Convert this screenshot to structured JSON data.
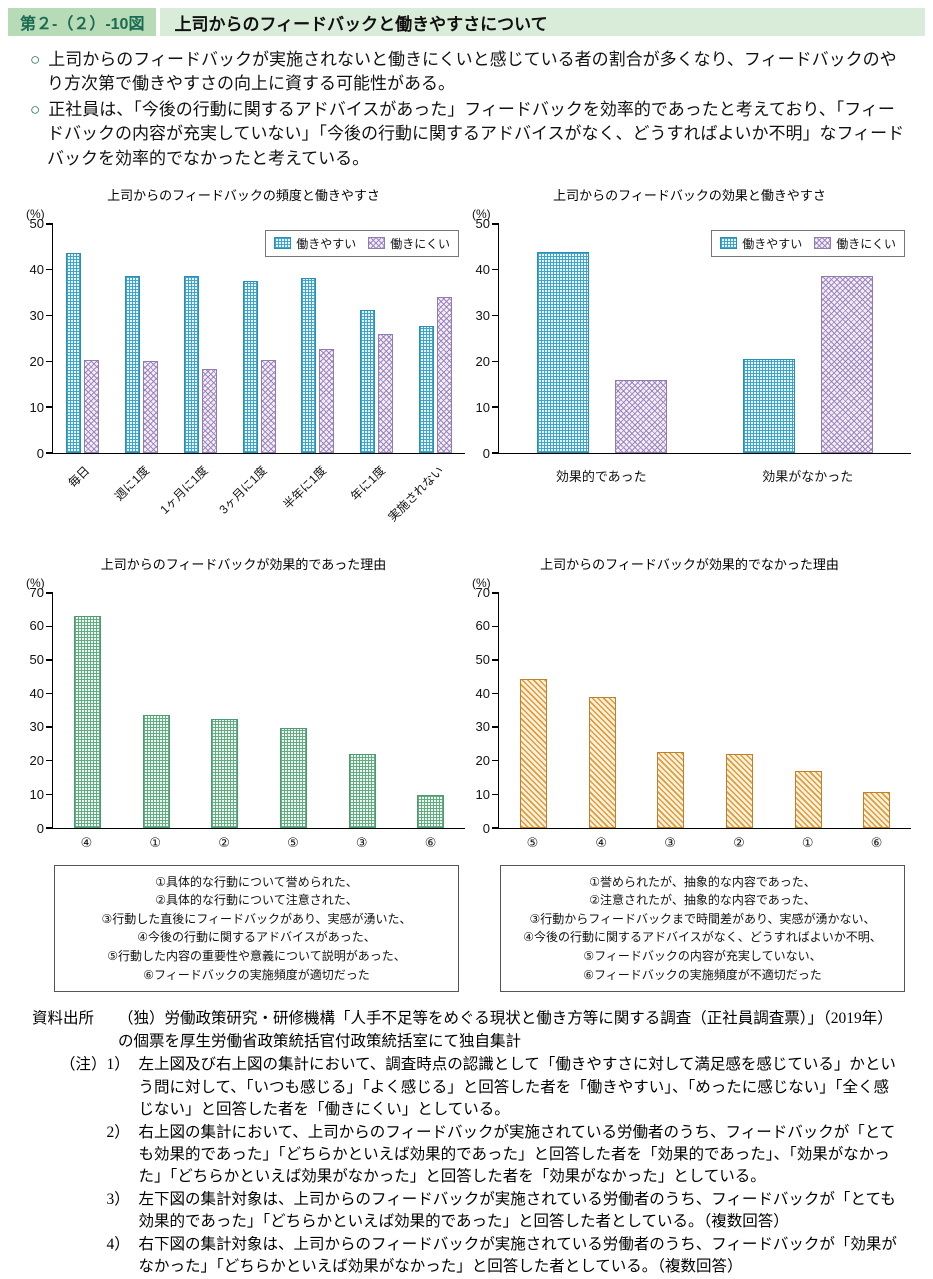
{
  "header": {
    "figure_number": "第２-（２）-10図",
    "title": "上司からのフィードバックと働きやすさについて"
  },
  "bullets": [
    {
      "marker": "○",
      "text": "上司からのフィードバックが実施されないと働きにくいと感じている者の割合が多くなり、フィードバックのやり方次第で働きやすさの向上に資する可能性がある。"
    },
    {
      "marker": "○",
      "text": "正社員は、「今後の行動に関するアドバイスがあった」フィードバックを効率的であったと考えており、「フィードバックの内容が充実していない」「今後の行動に関するアドバイスがなく、どうすればよいか不明」なフィードバックを効率的でなかったと考えている。"
    }
  ],
  "chart_data": [
    {
      "type": "bar",
      "title": "上司からのフィードバックの頻度と働きやすさ",
      "unit": "(%)",
      "ylim": [
        0,
        50
      ],
      "yticks": [
        0,
        10,
        20,
        30,
        40,
        50
      ],
      "grid": false,
      "legend": true,
      "legend_position": "top-right",
      "rotate_xlabels": true,
      "categories": [
        "毎日",
        "週に1度",
        "1ヶ月に1度",
        "3ヶ月に1度",
        "半年に1度",
        "年に1度",
        "実施されない"
      ],
      "series": [
        {
          "name": "働きやすい",
          "pattern": "blue",
          "values": [
            43.5,
            38.5,
            38.5,
            37.5,
            38.2,
            31.1,
            27.7
          ]
        },
        {
          "name": "働きにくい",
          "pattern": "purple",
          "values": [
            20.2,
            20.0,
            18.3,
            20.2,
            22.6,
            26.0,
            34.0
          ]
        }
      ]
    },
    {
      "type": "bar",
      "title": "上司からのフィードバックの効果と働きやすさ",
      "unit": "(%)",
      "ylim": [
        0,
        50
      ],
      "yticks": [
        0,
        10,
        20,
        30,
        40,
        50
      ],
      "grid": false,
      "legend": true,
      "legend_position": "top-right",
      "rotate_xlabels": false,
      "categories": [
        "効果的であった",
        "効果がなかった"
      ],
      "series": [
        {
          "name": "働きやすい",
          "pattern": "blue",
          "values": [
            43.7,
            20.4
          ]
        },
        {
          "name": "働きにくい",
          "pattern": "purple",
          "values": [
            15.8,
            38.6
          ]
        }
      ]
    },
    {
      "type": "bar",
      "title": "上司からのフィードバックが効果的であった理由",
      "unit": "(%)",
      "ylim": [
        0,
        70
      ],
      "yticks": [
        0,
        10,
        20,
        30,
        40,
        50,
        60,
        70
      ],
      "grid": false,
      "legend": false,
      "rotate_xlabels": false,
      "categories": [
        "④",
        "①",
        "②",
        "⑤",
        "③",
        "⑥"
      ],
      "series": [
        {
          "name": "効果的であった理由",
          "pattern": "green",
          "values": [
            63.0,
            33.5,
            32.4,
            29.6,
            22.0,
            9.6
          ]
        }
      ]
    },
    {
      "type": "bar",
      "title": "上司からのフィードバックが効果的でなかった理由",
      "unit": "(%)",
      "ylim": [
        0,
        70
      ],
      "yticks": [
        0,
        10,
        20,
        30,
        40,
        50,
        60,
        70
      ],
      "grid": false,
      "legend": false,
      "rotate_xlabels": false,
      "categories": [
        "⑤",
        "④",
        "③",
        "②",
        "①",
        "⑥"
      ],
      "series": [
        {
          "name": "効果的でなかった理由",
          "pattern": "orange",
          "values": [
            44.4,
            39.0,
            22.6,
            22.0,
            17.0,
            10.5
          ]
        }
      ]
    }
  ],
  "reasons": {
    "effective": [
      "①具体的な行動について誉められた、",
      "②具体的な行動について注意された、",
      "③行動した直後にフィードバックがあり、実感が湧いた、",
      "④今後の行動に関するアドバイスがあった、",
      "⑤行動した内容の重要性や意義について説明があった、",
      "⑥フィードバックの実施頻度が適切だった"
    ],
    "ineffective": [
      "①誉められたが、抽象的な内容であった、",
      "②注意されたが、抽象的な内容であった、",
      "③行動からフィードバックまで時間差があり、実感が湧かない、",
      "④今後の行動に関するアドバイスがなく、どうすればよいか不明、",
      "⑤フィードバックの内容が充実していない、",
      "⑥フィードバックの実施頻度が不適切だった"
    ]
  },
  "notes": {
    "source_label": "資料出所",
    "source_text": "（独）労働政策研究・研修機構「人手不足等をめぐる現状と働き方等に関する調査（正社員調査票）」（2019年）の個票を厚生労働省政策統括官付政策統括室にて独自集計",
    "note_label": "（注）",
    "items": [
      {
        "num": "1）",
        "text": "左上図及び右上図の集計において、調査時点の認識として「働きやすさに対して満足感を感じている」かという問に対して、「いつも感じる」「よく感じる」と回答した者を「働きやすい」、「めったに感じない」「全く感じない」と回答した者を「働きにくい」としている。"
      },
      {
        "num": "2）",
        "text": "右上図の集計において、上司からのフィードバックが実施されている労働者のうち、フィードバックが「とても効果的であった」「どちらかといえば効果的であった」と回答した者を「効果的であった」、「効果がなかった」「どちらかといえば効果がなかった」と回答した者を「効果がなかった」としている。"
      },
      {
        "num": "3）",
        "text": "左下図の集計対象は、上司からのフィードバックが実施されている労働者のうち、フィードバックが「とても効果的であった」「どちらかといえば効果的であった」と回答した者としている。（複数回答）"
      },
      {
        "num": "4）",
        "text": "右下図の集計対象は、上司からのフィードバックが実施されている労働者のうち、フィードバックが「効果がなかった」「どちらかといえば効果がなかった」と回答した者としている。（複数回答）"
      }
    ]
  },
  "colors": {
    "badge_bg": "#b7dab7",
    "badge_text": "#1a6b51",
    "title_bg": "#d9ecd9",
    "bar_blue": "#3ba0c8",
    "bar_purple": "#967db9",
    "bar_green": "#5aa57d",
    "bar_orange": "#e1962d"
  }
}
